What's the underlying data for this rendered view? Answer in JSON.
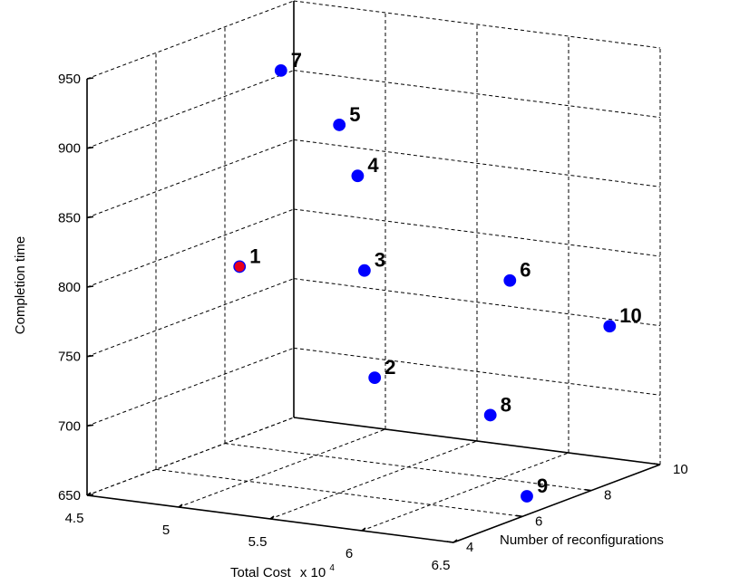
{
  "chart_data": {
    "type": "scatter",
    "title": "",
    "xlabel": "Total Cost",
    "xlabel_multiplier": "x 10",
    "xlabel_exponent": "4",
    "ylabel": "Number of reconfigurations",
    "zlabel": "Completion time",
    "xlim": [
      4.5,
      6.5
    ],
    "ylim": [
      4,
      10
    ],
    "zlim": [
      650,
      950
    ],
    "x_ticks": [
      4.5,
      5,
      5.5,
      6,
      6.5
    ],
    "x_tick_labels": [
      "4.5",
      "5",
      "5.5",
      "6",
      "6.5"
    ],
    "y_ticks": [
      4,
      6,
      8,
      10
    ],
    "y_tick_labels": [
      "4",
      "6",
      "8",
      "10"
    ],
    "z_ticks": [
      650,
      700,
      750,
      800,
      850,
      900,
      950
    ],
    "z_tick_labels": [
      "650",
      "700",
      "750",
      "800",
      "850",
      "900",
      "950"
    ],
    "grid": true,
    "points": [
      {
        "label": "1",
        "x": 4.9,
        "y": 6.3,
        "z": 800,
        "color": "#e8001c"
      },
      {
        "label": "2",
        "x": 5.6,
        "y": 6.5,
        "z": 730,
        "color": "#0000ff"
      },
      {
        "label": "3",
        "x": 5.45,
        "y": 7.0,
        "z": 800,
        "color": "#0000ff"
      },
      {
        "label": "4",
        "x": 5.3,
        "y": 7.6,
        "z": 860,
        "color": "#0000ff"
      },
      {
        "label": "5",
        "x": 5.2,
        "y": 7.6,
        "z": 895,
        "color": "#0000ff"
      },
      {
        "label": "6",
        "x": 6.15,
        "y": 7.5,
        "z": 800,
        "color": "#0000ff"
      },
      {
        "label": "7",
        "x": 4.9,
        "y": 7.5,
        "z": 930,
        "color": "#0000ff"
      },
      {
        "label": "8",
        "x": 6.25,
        "y": 6.4,
        "z": 715,
        "color": "#0000ff"
      },
      {
        "label": "9",
        "x": 6.6,
        "y": 5.6,
        "z": 670,
        "color": "#0000ff"
      },
      {
        "label": "10",
        "x": 6.45,
        "y": 8.8,
        "z": 760,
        "color": "#0000ff"
      }
    ]
  }
}
